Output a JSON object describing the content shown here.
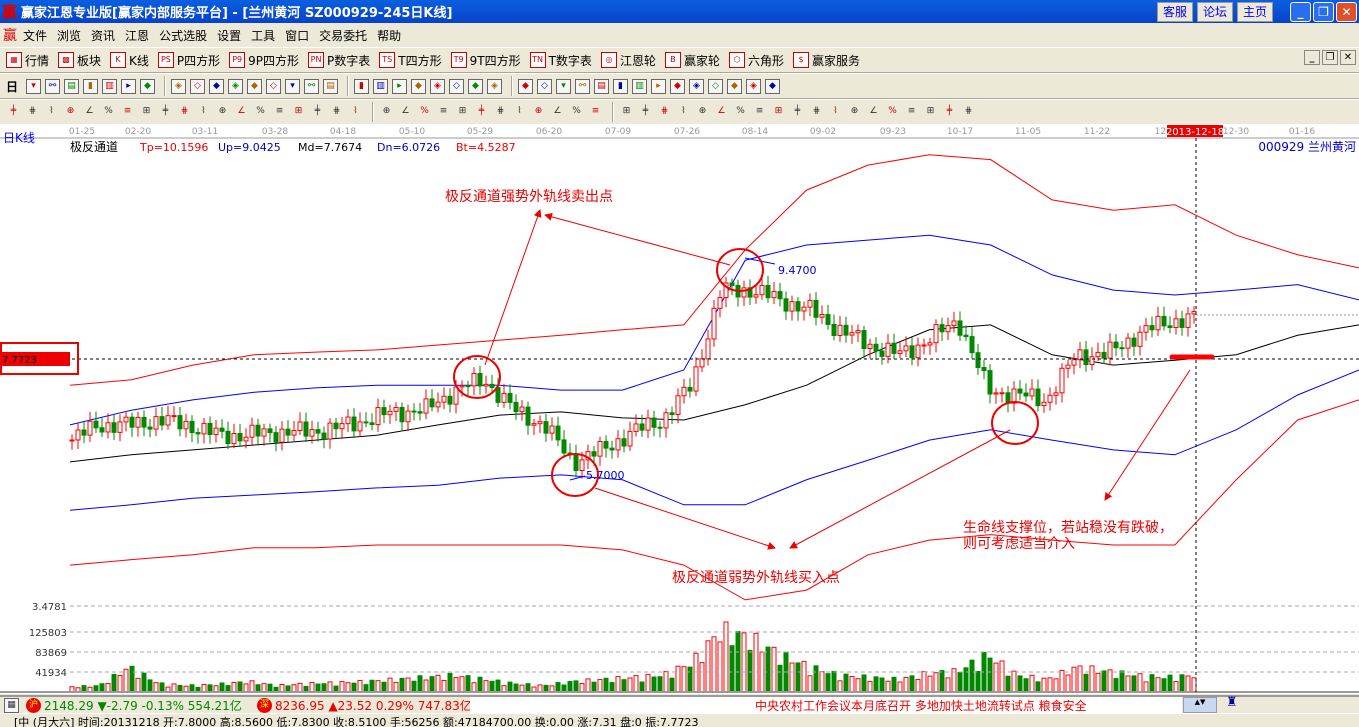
{
  "window": {
    "title": "赢家江恩专业版[赢家内部服务平台] - [兰州黄河   SZ000929-245日K线]",
    "logo": "赢",
    "links": [
      "客服",
      "论坛",
      "主页"
    ],
    "controls": [
      "_",
      "❐",
      "✕"
    ]
  },
  "menu": {
    "logo": "赢",
    "items": [
      "文件",
      "浏览",
      "资讯",
      "江恩",
      "公式选股",
      "设置",
      "工具",
      "窗口",
      "交易委托",
      "帮助"
    ],
    "mdi_controls": [
      "_",
      "❐",
      "✕"
    ]
  },
  "toolbar1": [
    {
      "icon": "grid-icon",
      "badge": "▦",
      "label": "行情"
    },
    {
      "icon": "blocks-icon",
      "badge": "▩",
      "label": "板块"
    },
    {
      "icon": "candle-icon",
      "badge": "K",
      "label": "K线"
    },
    {
      "icon": "ps-icon",
      "badge": "PS",
      "label": "P四方形"
    },
    {
      "icon": "p9-icon",
      "badge": "P9",
      "label": "9P四方形"
    },
    {
      "icon": "pn-icon",
      "badge": "PN",
      "label": "P数字表"
    },
    {
      "icon": "ts-icon",
      "badge": "TS",
      "label": "T四方形"
    },
    {
      "icon": "t9-icon",
      "badge": "T9",
      "label": "9T四方形"
    },
    {
      "icon": "tn-icon",
      "badge": "TN",
      "label": "T数字表"
    },
    {
      "icon": "gann-wheel-icon",
      "badge": "◎",
      "label": "江恩轮"
    },
    {
      "icon": "big-wheel-icon",
      "badge": "B",
      "label": "赢家轮"
    },
    {
      "icon": "hexagon-icon",
      "badge": "⬡",
      "label": "六角形"
    },
    {
      "icon": "dollar-icon",
      "badge": "$",
      "label": "赢家服务"
    }
  ],
  "toolbar2_first": "日",
  "chart": {
    "period_label": "日K线",
    "indicator": {
      "name": "极反通道",
      "tp": "Tp=10.1596",
      "up": "Up=9.0425",
      "md": "Md=7.7674",
      "dn": "Dn=6.0726",
      "bt": "Bt=4.5287"
    },
    "stock": "000929 兰州黄河",
    "date_ticks": [
      "01-25",
      "02-20",
      "03-11",
      "03-28",
      "04-18",
      "05-10",
      "05-29",
      "06-20",
      "07-09",
      "07-26",
      "08-14",
      "09-02",
      "09-23",
      "10-17",
      "11-05",
      "11-22",
      "12-",
      " ",
      "12-30",
      "01-16"
    ],
    "cursor_date": "2013-12-18",
    "cursor_price": "7.7723",
    "high_label": "9.4700",
    "low_label": "5.7000",
    "annotations": {
      "sell": "极反通道强势外轨线卖出点",
      "buy": "极反通道弱势外轨线买入点",
      "support1": "生命线支撑位，若站稳没有跌破，",
      "support2": "则可考虑适当介入"
    },
    "volume_ticks": [
      "3.4781",
      "125803",
      "83869",
      "41934"
    ],
    "colors": {
      "up": "#ff0000",
      "down": "#008000",
      "outer_band": "#ff0000",
      "inner_band": "#0000ff",
      "mid": "#000000"
    }
  },
  "chart_data": {
    "type": "candlestick",
    "closes": [
      6.34,
      6.62,
      6.62,
      6.71,
      6.62,
      6.43,
      6.43,
      6.49,
      6.49,
      6.56,
      6.71,
      6.86,
      6.89,
      7.26,
      7.45,
      6.89,
      6.62,
      5.94,
      6.16,
      6.49,
      6.71,
      7.35,
      9.1,
      9.1,
      8.92,
      8.73,
      8.37,
      8.09,
      7.91,
      8.18,
      8.55,
      7.26,
      7.17,
      7.08,
      7.91,
      7.91,
      8.27,
      8.51,
      8.59
    ],
    "volumes": [
      12000,
      15000,
      60000,
      20000,
      15000,
      18000,
      25000,
      15000,
      20000,
      22000,
      25000,
      30000,
      35000,
      40000,
      30000,
      20000,
      15000,
      25000,
      30000,
      35000,
      40000,
      70000,
      150000,
      130000,
      90000,
      60000,
      40000,
      35000,
      30000,
      45000,
      50000,
      90000,
      40000,
      30000,
      60000,
      50000,
      40000,
      35000,
      40000
    ],
    "bands": {
      "Tp": [
        7.35,
        7.45,
        7.72,
        7.91,
        7.96,
        8.0,
        8.09,
        8.18,
        8.27,
        8.37,
        8.46,
        9.84,
        10.94,
        11.4,
        11.59,
        11.5,
        10.76,
        10.57,
        10.67,
        10.11,
        9.75,
        9.51
      ],
      "Up": [
        6.62,
        6.89,
        7.08,
        7.22,
        7.3,
        7.35,
        7.35,
        7.35,
        7.26,
        7.26,
        7.63,
        9.65,
        9.93,
        10.02,
        10.11,
        9.93,
        9.38,
        9.1,
        9.01,
        9.1,
        9.2,
        8.92
      ],
      "Md": [
        5.94,
        6.07,
        6.16,
        6.25,
        6.34,
        6.43,
        6.62,
        6.8,
        6.86,
        6.75,
        6.71,
        6.99,
        7.35,
        7.91,
        8.37,
        8.46,
        7.91,
        7.72,
        7.81,
        7.91,
        8.27,
        8.46
      ],
      "Dn": [
        5.05,
        5.15,
        5.27,
        5.33,
        5.39,
        5.46,
        5.51,
        5.64,
        5.7,
        5.61,
        5.15,
        5.15,
        5.61,
        5.97,
        6.34,
        6.53,
        6.34,
        6.16,
        6.07,
        6.53,
        7.17,
        7.63
      ],
      "Bt": [
        4.04,
        4.14,
        4.23,
        4.36,
        4.36,
        4.41,
        4.41,
        4.41,
        4.41,
        4.32,
        4.04,
        3.4,
        3.58,
        4.23,
        4.5,
        4.6,
        4.5,
        4.41,
        4.41,
        5.61,
        6.71,
        7.08
      ]
    },
    "high": 9.47,
    "low": 5.7,
    "volume_axis": [
      41934,
      83869,
      125803
    ]
  },
  "status": {
    "sh_badge": "沪",
    "sh": "2148.29 ▼-2.79 -0.13% 554.21亿",
    "sz_badge": "深",
    "sz": "8236.95 ▲23.52 0.29% 747.83亿",
    "news": "中央农村工作会议本月底召开 多地加快土地流转试点     粮食安全"
  },
  "footer": "[中 (月大六] 时间:20131218 开:7.8000 高:8.5600 低:7.8300 收:8.5100 手:56256 额:47184700.00 换:0.00 涨:7.31 盘:0 振:7.7723"
}
